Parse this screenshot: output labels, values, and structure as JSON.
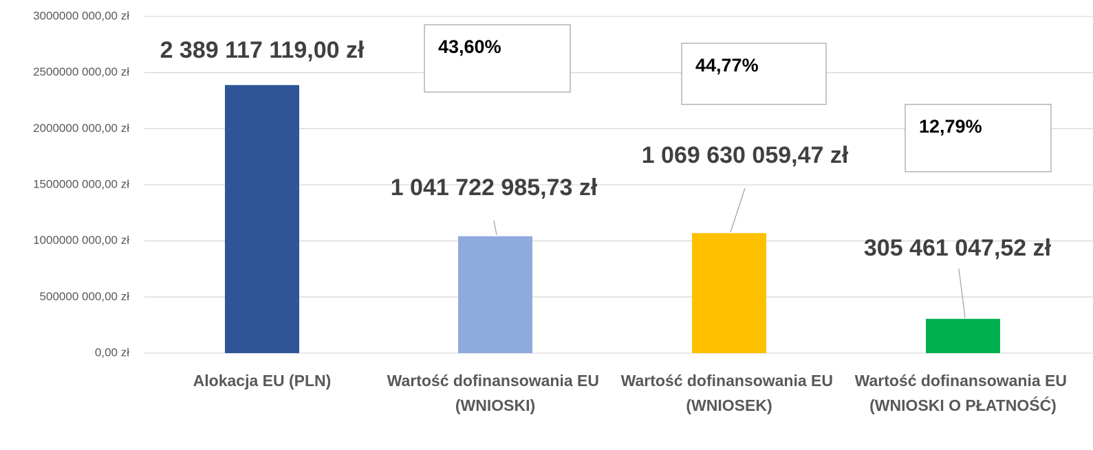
{
  "chart_data": {
    "type": "bar",
    "categories": [
      "Alokacja EU (PLN)",
      "Wartość dofinansowania EU (WNIOSKI)",
      "Wartość dofinansowania EU (WNIOSEK)",
      "Wartość dofinansowania EU (WNIOSKI O PŁATNOŚĆ)"
    ],
    "values": [
      2389117119,
      1041722985.73,
      1069630059.47,
      305461047.52
    ],
    "value_labels": [
      "2 389 117 119,00 zł",
      "1 041 722 985,73 zł",
      "1 069 630 059,47 zł",
      "305 461 047,52 zł"
    ],
    "colors": [
      "#2f5597",
      "#8faadc",
      "#ffc000",
      "#00b050"
    ],
    "annotations": [
      "43,60%",
      "44,77%",
      "12,79%"
    ],
    "ylim": [
      0,
      3000000000
    ],
    "yticks": [
      {
        "value": 0,
        "label": "0,00 zł"
      },
      {
        "value": 500000000,
        "label": "500000 000,00 zł"
      },
      {
        "value": 1000000000,
        "label": "1000000 000,00 zł"
      },
      {
        "value": 1500000000,
        "label": "1500000 000,00 zł"
      },
      {
        "value": 2000000000,
        "label": "2000000 000,00 zł"
      },
      {
        "value": 2500000000,
        "label": "2500000 000,00 zł"
      },
      {
        "value": 3000000000,
        "label": "3000000 000,00 zł"
      }
    ],
    "grid": true
  }
}
